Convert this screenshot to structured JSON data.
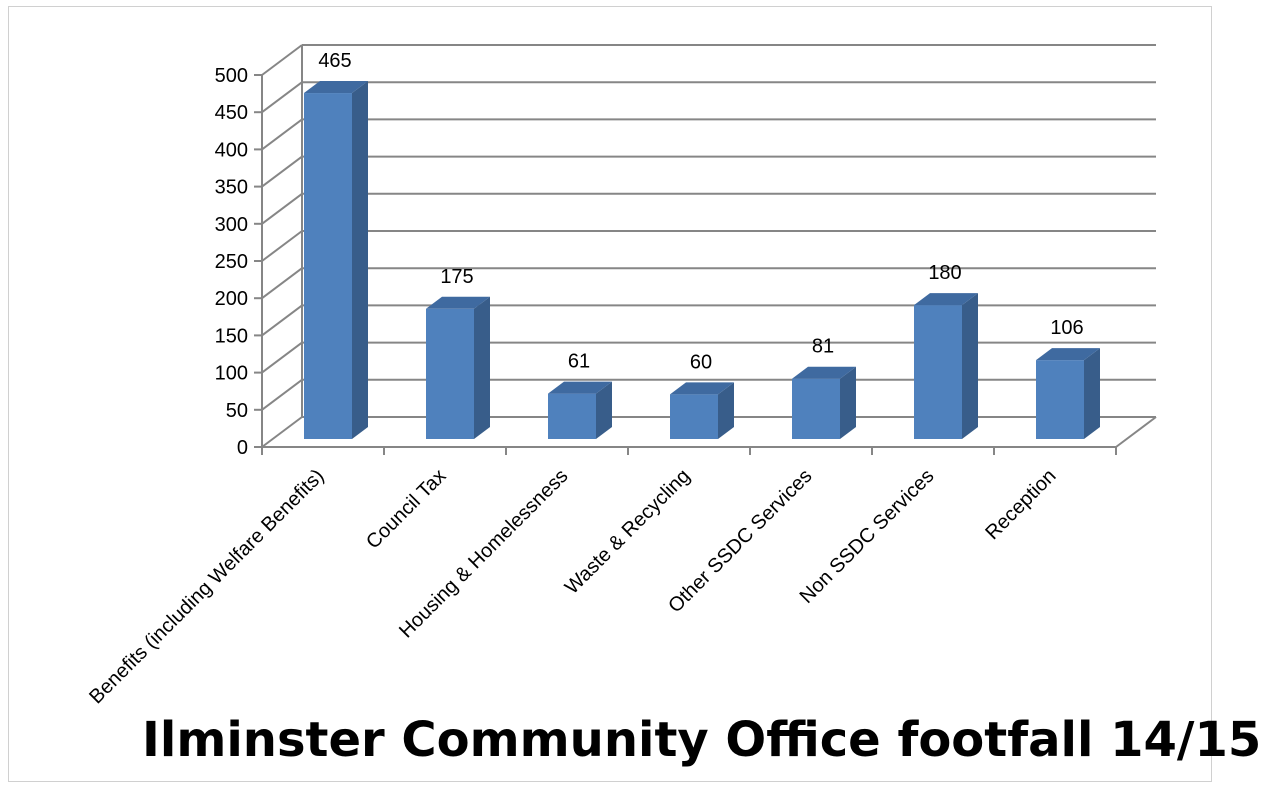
{
  "chart_data": {
    "type": "bar",
    "title": "Ilminster Community Office footfall 14/15",
    "categories": [
      "Benefits (including Welfare Benefits)",
      "Council Tax",
      "Housing & Homelessness",
      "Waste & Recycling",
      "Other SSDC Services",
      "Non SSDC Services",
      "Reception"
    ],
    "values": [
      465,
      175,
      61,
      60,
      81,
      180,
      106
    ],
    "data_labels": [
      "465",
      "175",
      "61",
      "60",
      "81",
      "180",
      "106"
    ],
    "y_ticks": [
      0,
      50,
      100,
      150,
      200,
      250,
      300,
      350,
      400,
      450,
      500
    ],
    "ylim": [
      0,
      500
    ],
    "grid": true,
    "legend": "none",
    "style": "3d-column",
    "colors": {
      "bar_front": "#4f81bd",
      "bar_side": "#385d8a",
      "bar_top": "#3f6aa0",
      "gridline": "#868686",
      "axis": "#868686"
    }
  }
}
